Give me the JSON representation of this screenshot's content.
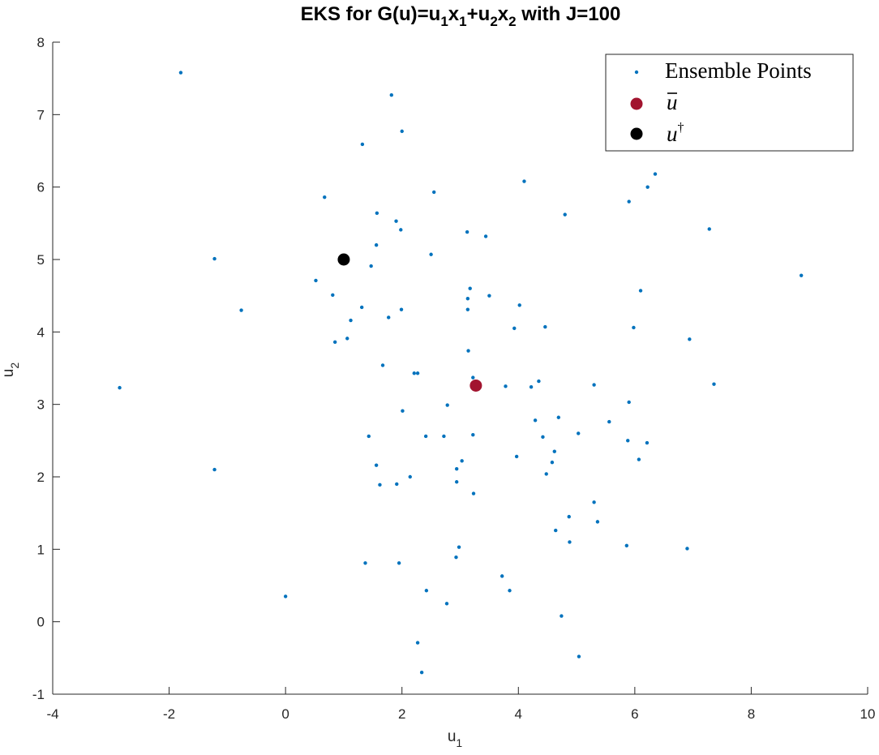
{
  "chart_data": {
    "type": "scatter",
    "title": {
      "main": "EKS for G(u)=u",
      "s1": "1",
      "m2": "x",
      "s2": "1",
      "m3": "+u",
      "s3": "2",
      "m4": "x",
      "s4": "2",
      "m5": " with J=100"
    },
    "xlabel": {
      "base": "u",
      "sub": "1"
    },
    "ylabel": {
      "base": "u",
      "sub": "2"
    },
    "xlim": [
      -4,
      10
    ],
    "ylim": [
      -1,
      8
    ],
    "xticks": [
      -4,
      -2,
      0,
      2,
      4,
      6,
      8,
      10
    ],
    "yticks": [
      -1,
      0,
      1,
      2,
      3,
      4,
      5,
      6,
      7,
      8
    ],
    "xtick_labels": [
      "-4",
      "-2",
      "0",
      "2",
      "4",
      "6",
      "8",
      "10"
    ],
    "ytick_labels": [
      "-1",
      "0",
      "1",
      "2",
      "3",
      "4",
      "5",
      "6",
      "7",
      "8"
    ],
    "grid": false,
    "legend_position": "top-right",
    "legend": {
      "ensemble": "Ensemble Points",
      "mean_base": "u",
      "truth_base": "u",
      "truth_sup": "†"
    },
    "series": [
      {
        "name": "Ensemble Points",
        "color": "#0072BD",
        "marker": "dot",
        "points": [
          [
            -1.8,
            7.58
          ],
          [
            1.82,
            7.27
          ],
          [
            2.0,
            6.77
          ],
          [
            1.32,
            6.59
          ],
          [
            4.1,
            6.08
          ],
          [
            6.35,
            6.18
          ],
          [
            6.22,
            6.0
          ],
          [
            2.55,
            5.93
          ],
          [
            0.67,
            5.86
          ],
          [
            5.9,
            5.8
          ],
          [
            1.57,
            5.64
          ],
          [
            4.8,
            5.62
          ],
          [
            1.9,
            5.53
          ],
          [
            1.98,
            5.41
          ],
          [
            7.28,
            5.42
          ],
          [
            3.12,
            5.38
          ],
          [
            3.44,
            5.32
          ],
          [
            1.56,
            5.2
          ],
          [
            2.5,
            5.07
          ],
          [
            -1.22,
            5.01
          ],
          [
            1.47,
            4.91
          ],
          [
            8.86,
            4.78
          ],
          [
            0.52,
            4.71
          ],
          [
            3.17,
            4.6
          ],
          [
            6.1,
            4.57
          ],
          [
            0.81,
            4.51
          ],
          [
            3.5,
            4.5
          ],
          [
            3.13,
            4.46
          ],
          [
            4.02,
            4.37
          ],
          [
            1.31,
            4.34
          ],
          [
            1.99,
            4.31
          ],
          [
            3.13,
            4.31
          ],
          [
            -0.76,
            4.3
          ],
          [
            1.77,
            4.2
          ],
          [
            1.12,
            4.16
          ],
          [
            4.46,
            4.07
          ],
          [
            5.98,
            4.06
          ],
          [
            3.93,
            4.05
          ],
          [
            1.06,
            3.91
          ],
          [
            6.94,
            3.9
          ],
          [
            0.85,
            3.86
          ],
          [
            3.14,
            3.74
          ],
          [
            1.67,
            3.54
          ],
          [
            2.21,
            3.43
          ],
          [
            2.27,
            3.43
          ],
          [
            3.22,
            3.37
          ],
          [
            4.35,
            3.32
          ],
          [
            7.36,
            3.28
          ],
          [
            5.3,
            3.27
          ],
          [
            3.78,
            3.25
          ],
          [
            4.22,
            3.24
          ],
          [
            -2.85,
            3.23
          ],
          [
            5.9,
            3.03
          ],
          [
            2.78,
            2.99
          ],
          [
            2.01,
            2.91
          ],
          [
            5.56,
            2.76
          ],
          [
            4.69,
            2.82
          ],
          [
            4.29,
            2.78
          ],
          [
            5.03,
            2.6
          ],
          [
            3.22,
            2.58
          ],
          [
            1.43,
            2.56
          ],
          [
            2.41,
            2.56
          ],
          [
            2.72,
            2.56
          ],
          [
            4.42,
            2.55
          ],
          [
            5.88,
            2.5
          ],
          [
            6.21,
            2.47
          ],
          [
            4.62,
            2.35
          ],
          [
            3.97,
            2.28
          ],
          [
            6.07,
            2.24
          ],
          [
            4.58,
            2.2
          ],
          [
            3.03,
            2.22
          ],
          [
            1.56,
            2.16
          ],
          [
            2.94,
            2.11
          ],
          [
            -1.22,
            2.1
          ],
          [
            4.48,
            2.04
          ],
          [
            2.14,
            2.0
          ],
          [
            2.94,
            1.93
          ],
          [
            1.62,
            1.89
          ],
          [
            1.91,
            1.9
          ],
          [
            3.23,
            1.77
          ],
          [
            5.3,
            1.65
          ],
          [
            4.87,
            1.45
          ],
          [
            5.36,
            1.38
          ],
          [
            4.64,
            1.26
          ],
          [
            4.88,
            1.1
          ],
          [
            5.86,
            1.05
          ],
          [
            6.9,
            1.01
          ],
          [
            2.98,
            1.03
          ],
          [
            2.93,
            0.89
          ],
          [
            1.37,
            0.81
          ],
          [
            1.95,
            0.81
          ],
          [
            3.72,
            0.63
          ],
          [
            3.85,
            0.43
          ],
          [
            2.42,
            0.43
          ],
          [
            0.0,
            0.35
          ],
          [
            2.77,
            0.25
          ],
          [
            4.74,
            0.08
          ],
          [
            2.27,
            -0.29
          ],
          [
            5.04,
            -0.48
          ],
          [
            2.34,
            -0.7
          ]
        ]
      },
      {
        "name": "mean",
        "color": "#A2142F",
        "marker": "circle",
        "points": [
          [
            3.27,
            3.26
          ]
        ]
      },
      {
        "name": "truth",
        "color": "#000000",
        "marker": "circle",
        "points": [
          [
            1.0,
            5.0
          ]
        ]
      }
    ]
  }
}
